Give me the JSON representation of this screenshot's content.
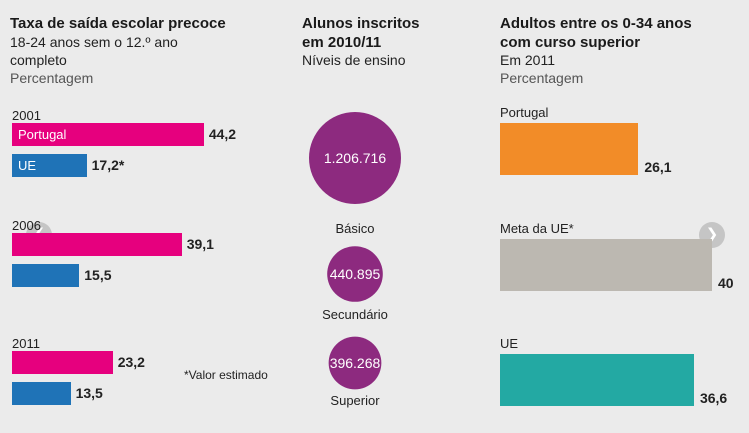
{
  "left": {
    "title": "Taxa de saída escolar precoce",
    "subtitle_line1": "18-24 anos sem o 12.º ano",
    "subtitle_line2": "completo",
    "unit": "Percentagem",
    "note": "*Valor estimado"
  },
  "middle": {
    "title_line1": "Alunos inscritos",
    "title_line2": "em 2010/11",
    "subtitle": "Níveis de ensino"
  },
  "right": {
    "title_line1": "Adultos entre os 0-34 anos",
    "title_line2": "com curso superior",
    "subtitle": "Em 2011",
    "unit": "Percentagem"
  },
  "nav": {
    "prev_icon": "chevron-left-icon",
    "next_icon": "chevron-right-icon"
  },
  "colors": {
    "portugal_pink": "#e6007e",
    "ue_blue": "#1f73b7",
    "bubble_purple": "#8d2a7f",
    "bar_orange": "#f28c28",
    "bar_gray": "#bcb8b1",
    "bar_teal": "#23a9a3"
  },
  "chart_data": [
    {
      "type": "bar",
      "orientation": "horizontal",
      "categories": [
        "2001",
        "2006",
        "2011"
      ],
      "series": [
        {
          "name": "Portugal",
          "values": [
            44.2,
            39.1,
            23.2
          ],
          "labels": [
            "44,2",
            "39,1",
            "23,2"
          ],
          "color": "#e6007e"
        },
        {
          "name": "UE",
          "values": [
            17.2,
            15.5,
            13.5
          ],
          "labels": [
            "17,2*",
            "15,5",
            "13,5"
          ],
          "color": "#1f73b7"
        }
      ]
    },
    {
      "type": "bubble",
      "categories": [
        "Básico",
        "Secundário",
        "Superior"
      ],
      "values": [
        1206716,
        440895,
        396268
      ],
      "labels": [
        "1.206.716",
        "440.895",
        "396.268"
      ],
      "color": "#8d2a7f"
    },
    {
      "type": "bar",
      "orientation": "horizontal",
      "categories": [
        "Portugal",
        "Meta da UE*",
        "UE"
      ],
      "values": [
        26.1,
        40,
        36.6
      ],
      "labels": [
        "26,1",
        "40",
        "36,6"
      ],
      "colors": [
        "#f28c28",
        "#bcb8b1",
        "#23a9a3"
      ]
    }
  ]
}
